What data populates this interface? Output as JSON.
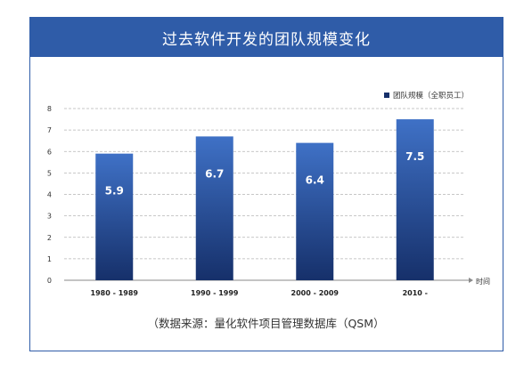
{
  "title": "过去软件开发的团队规模变化",
  "source": "（数据来源：量化软件项目管理数据库（QSM）",
  "colors": {
    "frame": "#2f5ca8",
    "bar_top": "#3f71c6",
    "bar_bottom": "#16306a",
    "grid": "#b5b5b5"
  },
  "chart_data": {
    "type": "bar",
    "categories": [
      "1980 - 1989",
      "1990 - 1999",
      "2000 - 2009",
      "2010 -"
    ],
    "series": [
      {
        "name": "团队规模（全职员工）",
        "values": [
          5.9,
          6.7,
          6.4,
          7.5
        ]
      }
    ],
    "data_labels": [
      "5.9",
      "6.7",
      "6.4",
      "7.5"
    ],
    "ylim": [
      0,
      8
    ],
    "yticks": [
      0,
      1,
      2,
      3,
      4,
      5,
      6,
      7,
      8
    ],
    "xlabel": "时间",
    "ylabel": "",
    "grid": true,
    "legend_position": "top-right"
  }
}
